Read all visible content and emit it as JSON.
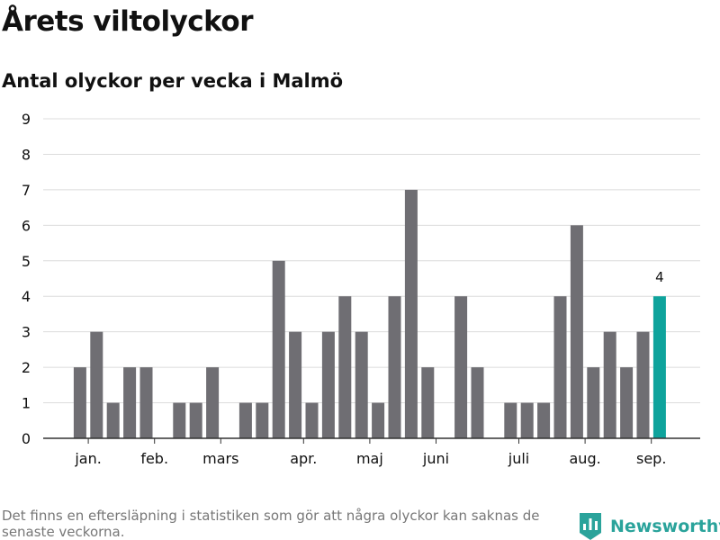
{
  "header": {
    "title": "Årets viltolyckor",
    "subtitle": "Antal olyckor per vecka i Malmö"
  },
  "footer": {
    "note": "Det finns en eftersläpning i statistiken som gör att några olyckor kan saknas de senaste veckorna.",
    "brand": "Newsworthy",
    "brand_icon": "bar-chart-logo-icon"
  },
  "colors": {
    "bar": "#6f6e73",
    "highlight": "#0ea39c",
    "grid": "#dcdcdc",
    "axis": "#333333",
    "text": "#111111",
    "brand": "#2aa39b"
  },
  "chart_data": {
    "type": "bar",
    "title": "Antal olyckor per vecka i Malmö",
    "xlabel": "",
    "ylabel": "",
    "ylim": [
      0,
      9
    ],
    "yticks": [
      0,
      1,
      2,
      3,
      4,
      5,
      6,
      7,
      8,
      9
    ],
    "grid": true,
    "x_unit": "vecka",
    "x": [
      1,
      2,
      3,
      4,
      5,
      6,
      7,
      8,
      9,
      10,
      11,
      12,
      13,
      14,
      15,
      16,
      17,
      18,
      19,
      20,
      21,
      22,
      23,
      24,
      25,
      26,
      27,
      28,
      29,
      30,
      31,
      32,
      33,
      34,
      35,
      36,
      37,
      38
    ],
    "values": [
      0,
      2,
      3,
      1,
      2,
      2,
      0,
      1,
      1,
      2,
      0,
      1,
      1,
      5,
      3,
      1,
      3,
      4,
      3,
      1,
      4,
      7,
      2,
      0,
      4,
      2,
      0,
      1,
      1,
      1,
      4,
      6,
      2,
      3,
      2,
      3,
      4,
      0
    ],
    "highlight_index": 36,
    "data_labels": [
      {
        "index": 36,
        "text": "4"
      }
    ],
    "month_ticks": [
      {
        "label": "jan.",
        "week": 2.5
      },
      {
        "label": "feb.",
        "week": 6.5
      },
      {
        "label": "mars",
        "week": 10.5
      },
      {
        "label": "apr.",
        "week": 15.5
      },
      {
        "label": "maj",
        "week": 19.5
      },
      {
        "label": "juni",
        "week": 23.5
      },
      {
        "label": "juli",
        "week": 28.5
      },
      {
        "label": "aug.",
        "week": 32.5
      },
      {
        "label": "sep.",
        "week": 36.5
      }
    ]
  }
}
